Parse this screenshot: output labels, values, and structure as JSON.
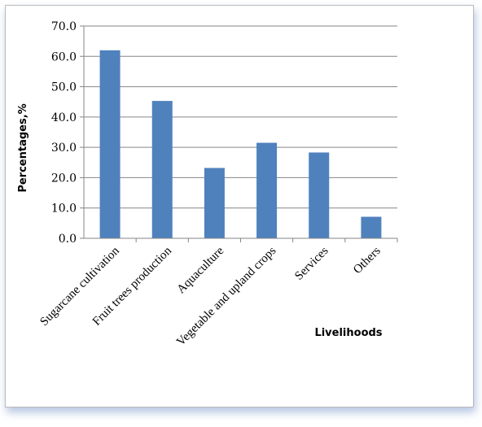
{
  "chart_data": {
    "type": "bar",
    "title": "",
    "xlabel": "Livelihoods",
    "ylabel": "Percentages,%",
    "categories": [
      "Sugarcane cultivation",
      "Fruit trees production",
      "Aquaculture",
      "Vegetable and upland crops",
      "Services",
      "Others"
    ],
    "values": [
      62.0,
      45.3,
      23.2,
      31.5,
      28.3,
      7.1
    ],
    "ylim": [
      0,
      70
    ],
    "yticks": [
      "0.0",
      "10.0",
      "20.0",
      "30.0",
      "40.0",
      "50.0",
      "60.0",
      "70.0"
    ],
    "grid": true,
    "legend": "none",
    "bar_color": "#4F81BD"
  }
}
